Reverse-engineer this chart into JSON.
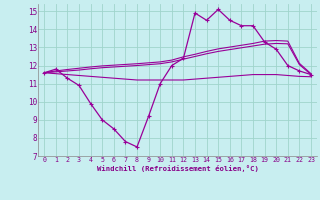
{
  "xlabel": "Windchill (Refroidissement éolien,°C)",
  "background_color": "#c8eef0",
  "grid_color": "#a0d4cc",
  "line_color": "#990099",
  "xlim": [
    -0.5,
    23.5
  ],
  "ylim": [
    7,
    15.4
  ],
  "xticks": [
    0,
    1,
    2,
    3,
    4,
    5,
    6,
    7,
    8,
    9,
    10,
    11,
    12,
    13,
    14,
    15,
    16,
    17,
    18,
    19,
    20,
    21,
    22,
    23
  ],
  "yticks": [
    7,
    8,
    9,
    10,
    11,
    12,
    13,
    14,
    15
  ],
  "x": [
    0,
    1,
    2,
    3,
    4,
    5,
    6,
    7,
    8,
    9,
    10,
    11,
    12,
    13,
    14,
    15,
    16,
    17,
    18,
    19,
    20,
    21,
    22,
    23
  ],
  "line_main": [
    11.6,
    11.8,
    11.3,
    10.9,
    9.9,
    9.0,
    8.5,
    7.8,
    7.5,
    9.2,
    11.0,
    12.0,
    12.4,
    14.9,
    14.5,
    15.1,
    14.5,
    14.2,
    14.2,
    13.3,
    12.9,
    12.0,
    11.7,
    11.5
  ],
  "line_low": [
    11.6,
    11.55,
    11.5,
    11.45,
    11.4,
    11.35,
    11.3,
    11.25,
    11.2,
    11.2,
    11.2,
    11.2,
    11.2,
    11.25,
    11.3,
    11.35,
    11.4,
    11.45,
    11.5,
    11.5,
    11.5,
    11.45,
    11.4,
    11.38
  ],
  "line_mid": [
    11.6,
    11.65,
    11.7,
    11.75,
    11.82,
    11.88,
    11.92,
    11.96,
    12.0,
    12.05,
    12.1,
    12.2,
    12.35,
    12.5,
    12.65,
    12.78,
    12.88,
    12.98,
    13.08,
    13.18,
    13.22,
    13.2,
    12.05,
    11.5
  ],
  "line_high": [
    11.6,
    11.7,
    11.78,
    11.85,
    11.92,
    11.98,
    12.02,
    12.06,
    12.1,
    12.15,
    12.2,
    12.3,
    12.48,
    12.62,
    12.78,
    12.92,
    13.02,
    13.12,
    13.22,
    13.35,
    13.38,
    13.35,
    12.12,
    11.55
  ]
}
